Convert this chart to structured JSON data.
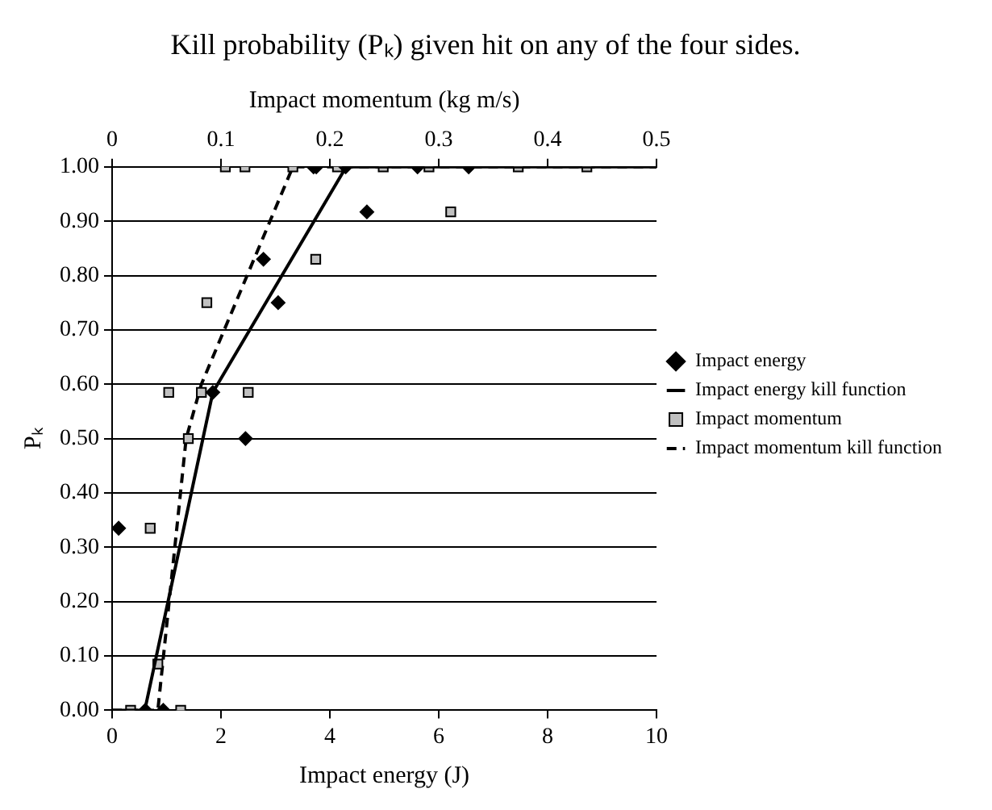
{
  "chart_data": {
    "type": "scatter",
    "title": "Kill probability (Pₖ) given hit on any of the four sides.",
    "xlabel": "Impact energy (J)",
    "x2label": "Impact momentum (kg m/s)",
    "ylabel": "Pₖ",
    "xlim": [
      0,
      10
    ],
    "xticks": [
      0,
      2,
      4,
      6,
      8,
      10
    ],
    "x2lim": [
      0,
      0.5
    ],
    "x2ticks": [
      0,
      0.1,
      0.2,
      0.3,
      0.4,
      0.5
    ],
    "ylim": [
      0,
      1
    ],
    "yticks": [
      {
        "value": 0,
        "label": "0.00"
      },
      {
        "value": 0.1,
        "label": "0.10"
      },
      {
        "value": 0.2,
        "label": "0.20"
      },
      {
        "value": 0.3,
        "label": "0.30"
      },
      {
        "value": 0.4,
        "label": "0.40"
      },
      {
        "value": 0.5,
        "label": "0.50"
      },
      {
        "value": 0.6,
        "label": "0.60"
      },
      {
        "value": 0.7,
        "label": "0.70"
      },
      {
        "value": 0.8,
        "label": "0.80"
      },
      {
        "value": 0.9,
        "label": "0.90"
      },
      {
        "value": 1,
        "label": "1.00"
      }
    ],
    "grid": "y",
    "legend": "right",
    "series": [
      {
        "name": "Impact energy",
        "marker": "diamond",
        "color": "#000000",
        "x": [
          0.12,
          0.61,
          0.94,
          1.85,
          2.45,
          2.78,
          3.05,
          3.7,
          3.75,
          4.29,
          4.68,
          5.61,
          6.55
        ],
        "values": [
          0.335,
          0,
          0,
          0.585,
          0.5,
          0.83,
          0.75,
          1,
          1,
          1,
          0.917,
          1,
          1
        ]
      },
      {
        "name": "Impact energy kill function",
        "type": "line",
        "marker": "none",
        "line_style": "solid",
        "color": "#000000",
        "x": [
          0,
          0.6,
          1.85,
          4.3,
          10
        ],
        "values": [
          0,
          0,
          0.585,
          1,
          1
        ]
      },
      {
        "name": "Impact momentum",
        "marker": "square",
        "color": "#c0c0c0",
        "axis": "x2",
        "x": [
          0.017,
          0.063,
          0.035,
          0.042,
          0.052,
          0.07,
          0.082,
          0.087,
          0.125,
          0.104,
          0.122,
          0.166,
          0.187,
          0.207,
          0.249,
          0.291,
          0.311,
          0.373,
          0.436
        ],
        "values": [
          0,
          0,
          0.335,
          0.085,
          0.585,
          0.5,
          0.585,
          0.75,
          0.585,
          1,
          1,
          1,
          0.83,
          1,
          1,
          1,
          0.917,
          1,
          1
        ]
      },
      {
        "name": "Impact momentum kill function",
        "type": "line",
        "marker": "none",
        "line_style": "dashed",
        "color": "#000000",
        "axis": "x2",
        "x": [
          0,
          0.042,
          0.068,
          0.082,
          0.166,
          0.5
        ],
        "values": [
          0,
          0,
          0.5,
          0.6,
          1,
          1
        ]
      }
    ]
  }
}
